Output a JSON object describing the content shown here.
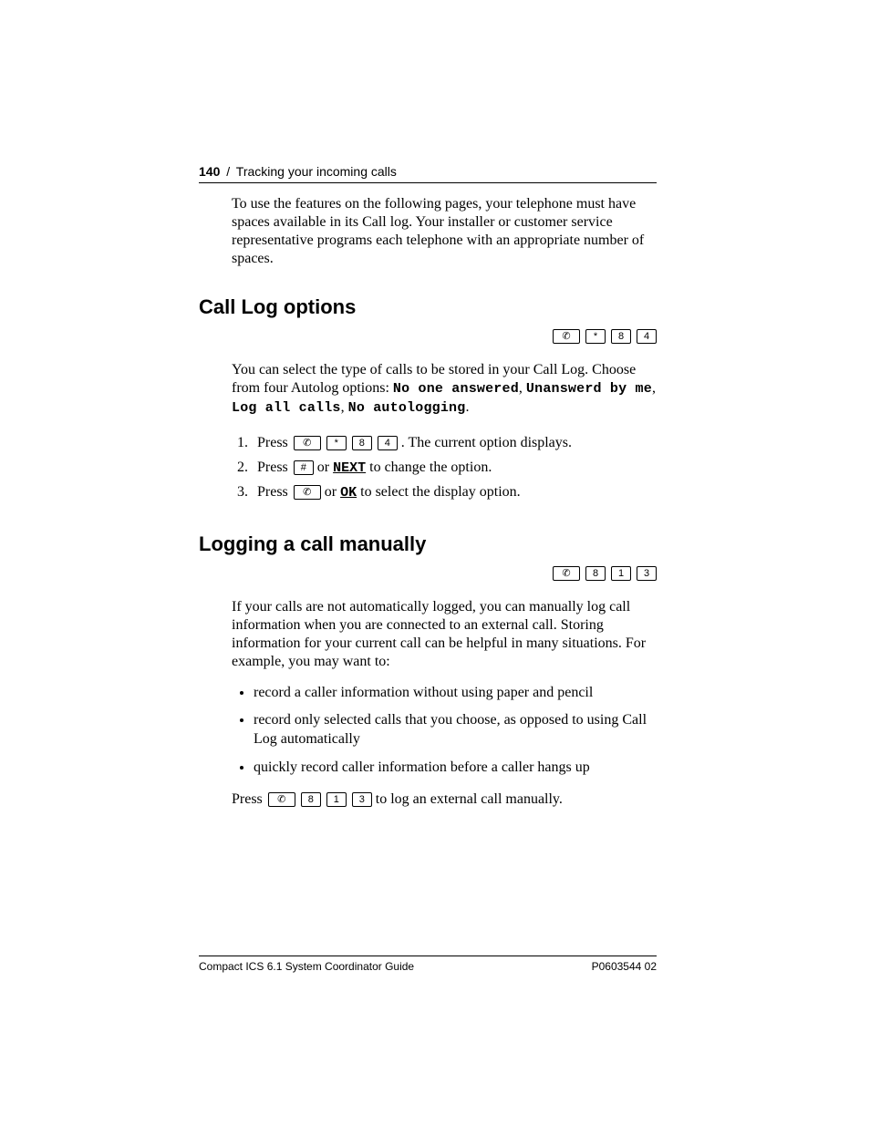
{
  "header": {
    "page_number": "140",
    "separator": "/",
    "chapter": "Tracking your incoming calls"
  },
  "intro_paragraph": "To use the features on the following pages, your telephone must have spaces available in its Call log. Your installer or customer service representative programs each telephone with an appropriate number of spaces.",
  "section1": {
    "title": "Call Log options",
    "feature_keys": {
      "k0": "✆",
      "k1": "*",
      "k2": "8",
      "k3": "4"
    },
    "para_lead": "You can select the type of calls to be stored in your Call Log. Choose from four Autolog options: ",
    "opt1": "No one answered",
    "comma1": ", ",
    "opt2": "Unanswerd by me",
    "comma2": ", ",
    "opt3": "Log all calls",
    "comma3": ", ",
    "opt4": "No autologging",
    "period": ".",
    "step1_a": "Press ",
    "step1_b": ". The current option displays.",
    "step2_a": "Press ",
    "step2_mid": " or ",
    "step2_soft": "NEXT",
    "step2_b": " to change the option.",
    "step3_a": "Press ",
    "step3_mid": " or ",
    "step3_soft": "OK",
    "step3_b": " to select the display option.",
    "hash": "#"
  },
  "section2": {
    "title": "Logging a call manually",
    "feature_keys": {
      "k0": "✆",
      "k1": "8",
      "k2": "1",
      "k3": "3"
    },
    "para": "If your calls are not automatically logged, you can manually log call information when you are connected to an external call. Storing information for your current call can be helpful in many situations. For example, you may want to:",
    "b1": "record a caller information without using paper and pencil",
    "b2": "record only selected calls that you choose, as opposed to using Call Log automatically",
    "b3": "quickly record caller information before a caller hangs up",
    "press_a": "Press ",
    "press_b": " to log an external call manually."
  },
  "footer": {
    "left": "Compact ICS 6.1 System Coordinator Guide",
    "right": "P0603544  02"
  }
}
